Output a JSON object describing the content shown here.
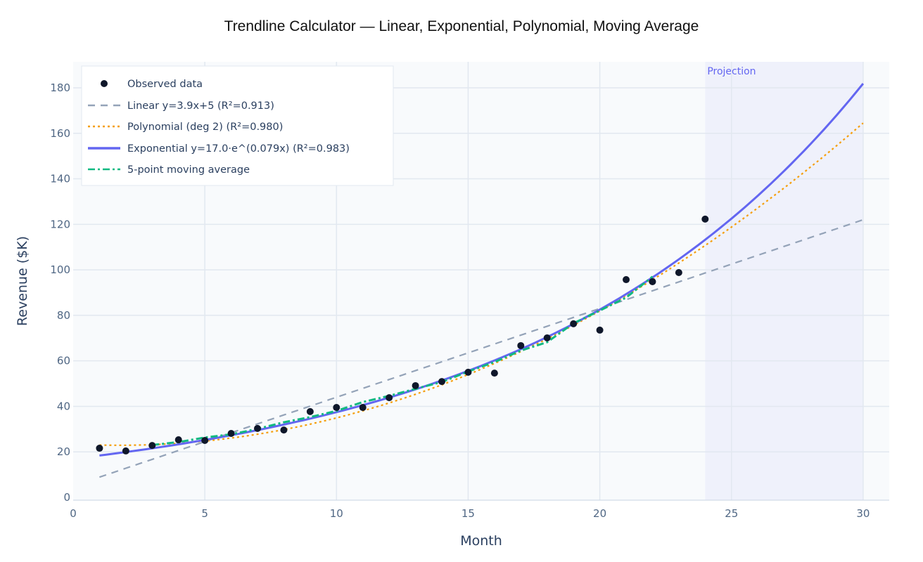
{
  "chart_data": {
    "type": "line",
    "title": "Trendline Calculator — Linear, Exponential, Polynomial, Moving Average",
    "xlabel": "Month",
    "ylabel": "Revenue ($K)",
    "xlim": [
      0,
      31
    ],
    "ylim": [
      0,
      190
    ],
    "xticks": [
      0,
      5,
      10,
      15,
      20,
      25,
      30
    ],
    "yticks": [
      0,
      20,
      40,
      60,
      80,
      100,
      120,
      140,
      160,
      180
    ],
    "grid": true,
    "legend_position": "top-left",
    "projection_region": {
      "x_start": 24,
      "x_end": 30,
      "label": "Projection"
    },
    "observed": {
      "name": "Observed data",
      "color": "#0f172a",
      "x": [
        1,
        2,
        3,
        4,
        5,
        6,
        7,
        8,
        9,
        10,
        11,
        12,
        13,
        14,
        15,
        16,
        17,
        18,
        19,
        20,
        21,
        22,
        23,
        24
      ],
      "y": [
        21.6,
        20.4,
        22.8,
        25.3,
        25.0,
        28.1,
        30.3,
        29.6,
        37.7,
        39.5,
        39.5,
        43.8,
        49.1,
        50.9,
        55.0,
        54.6,
        66.7,
        70.1,
        76.3,
        73.5,
        95.7,
        94.8,
        98.8,
        122.3
      ]
    },
    "series": [
      {
        "name": "Linear  y=3.9x+5  (R²=0.913)",
        "kind": "linear",
        "coef": [
          3.9,
          5
        ],
        "x_range": [
          1,
          30
        ],
        "color": "#94a3b8",
        "dash": "10,8"
      },
      {
        "name": "Polynomial (deg 2)  (R²=0.980)",
        "kind": "poly2",
        "coef": [
          0.1777,
          -0.629,
          23.45
        ],
        "x_range": [
          1,
          30
        ],
        "color": "#f59e0b",
        "dash": "3,4"
      },
      {
        "name": "Exponential  y=17.0·e^(0.079x)  (R²=0.983)",
        "kind": "exp",
        "coef": [
          17.0,
          0.079
        ],
        "x_range": [
          1,
          30
        ],
        "color": "#6366f1",
        "dash": ""
      },
      {
        "name": "5-point moving average",
        "kind": "points",
        "x": [
          3,
          4,
          5,
          6,
          7,
          8,
          9,
          10,
          11,
          12,
          13,
          14,
          15,
          16,
          17,
          18,
          19,
          20,
          21,
          22
        ],
        "y": [
          23.0,
          24.3,
          26.3,
          27.7,
          30.1,
          33.0,
          35.3,
          38.0,
          41.9,
          44.6,
          47.7,
          50.7,
          55.3,
          59.5,
          64.5,
          68.2,
          76.5,
          82.1,
          87.8,
          97.0
        ],
        "color": "#10b981",
        "dash": "10,4,3,4"
      }
    ]
  }
}
